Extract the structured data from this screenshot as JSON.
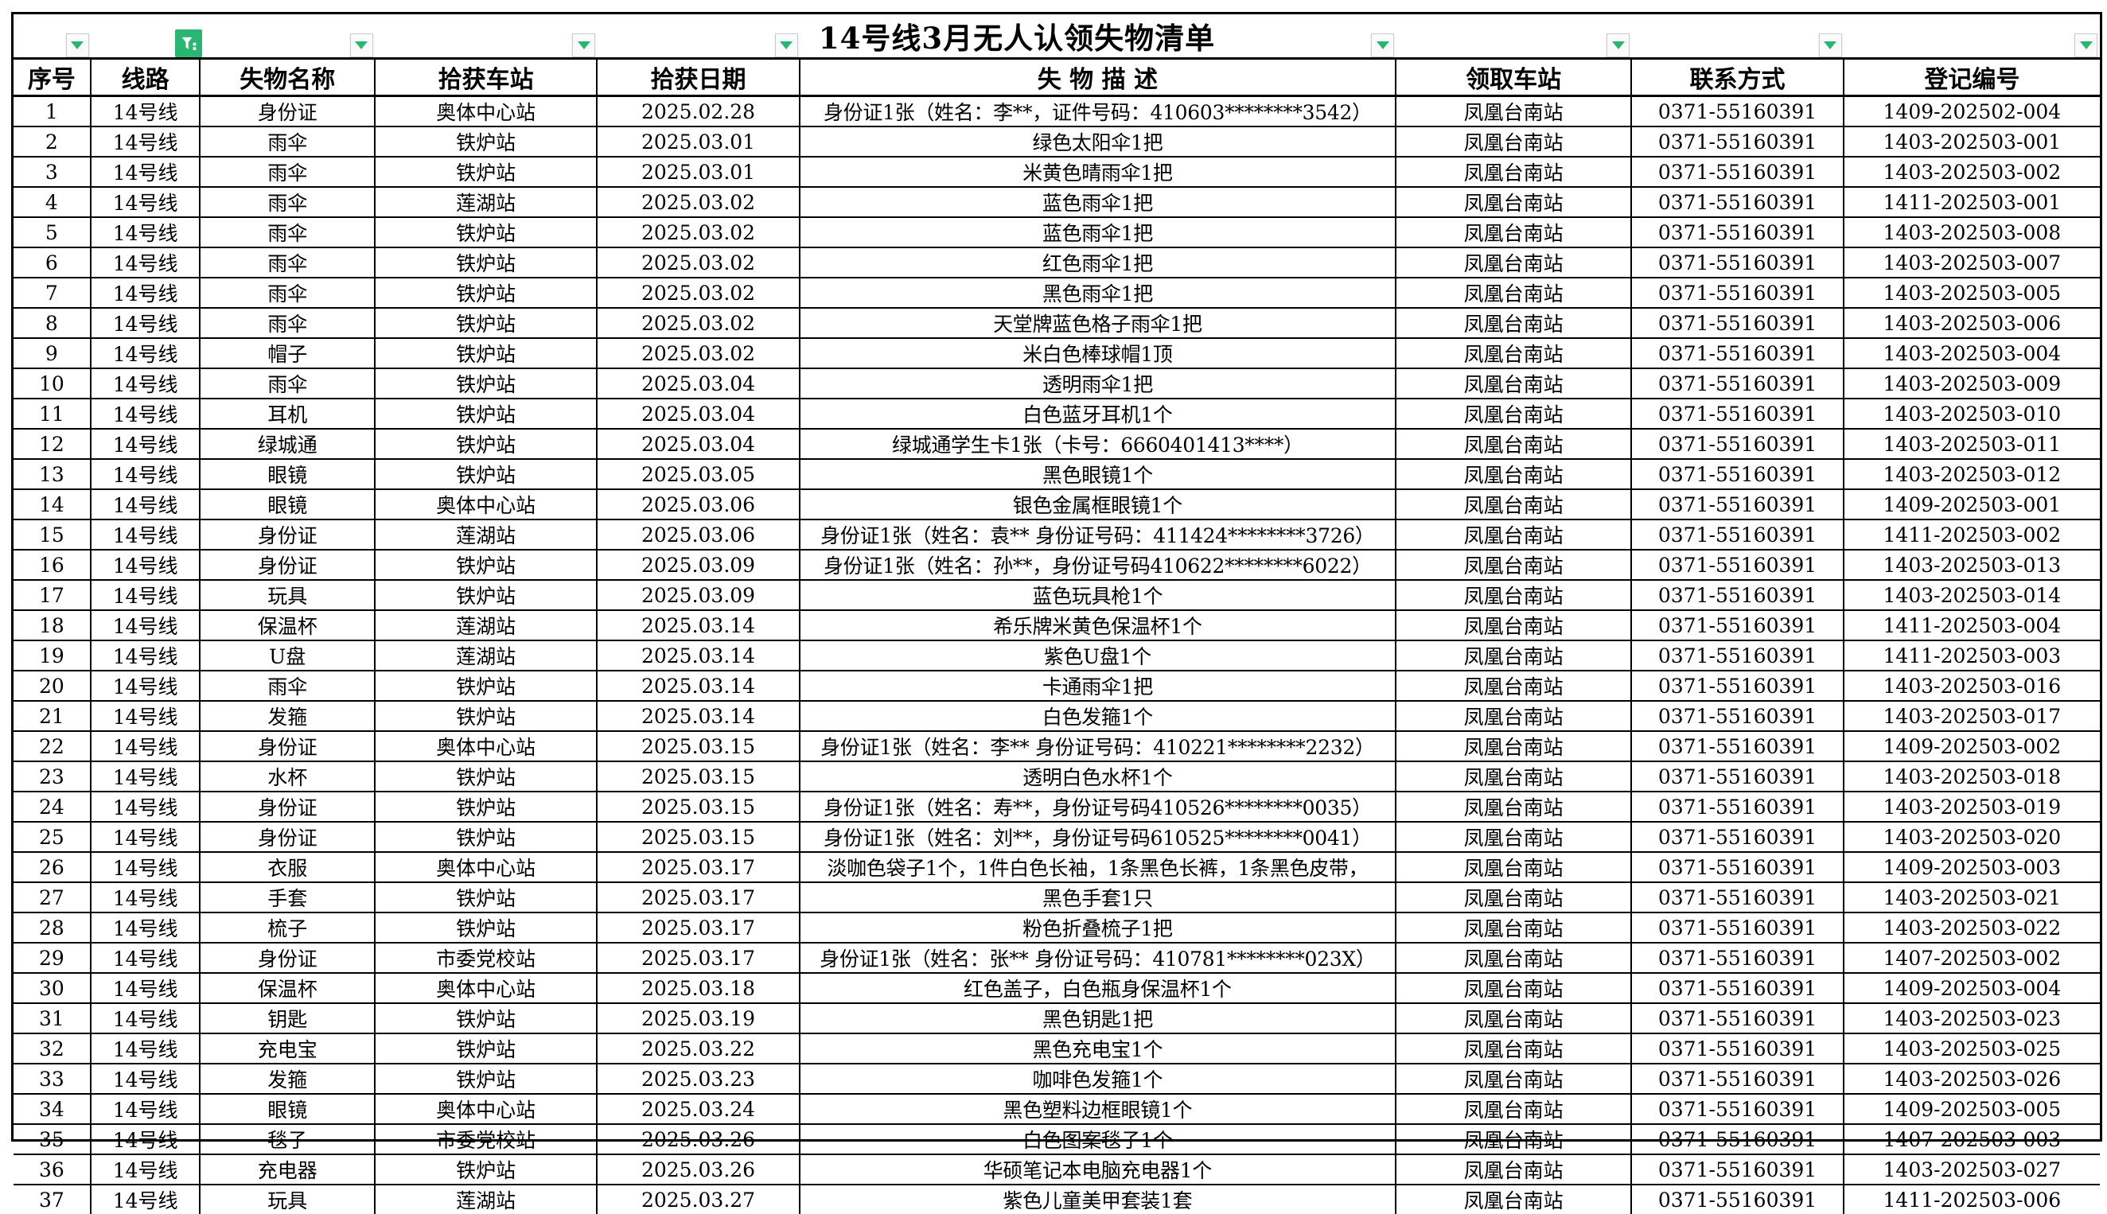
{
  "title": "14号线3月无人认领失物清单",
  "accent_color": "#2bb573",
  "table": {
    "columns": [
      {
        "label": "序号",
        "filter": "arrow"
      },
      {
        "label": "线路",
        "filter": "funnel"
      },
      {
        "label": "失物名称",
        "filter": "arrow"
      },
      {
        "label": "拾获车站",
        "filter": "arrow"
      },
      {
        "label": "拾获日期",
        "filter": "arrow"
      },
      {
        "label": "失 物 描 述",
        "filter": "arrow"
      },
      {
        "label": "领取车站",
        "filter": "arrow"
      },
      {
        "label": "联系方式",
        "filter": "arrow"
      },
      {
        "label": "登记编号",
        "filter": "arrow"
      }
    ],
    "rows": [
      [
        "1",
        "14号线",
        "身份证",
        "奥体中心站",
        "2025.02.28",
        "身份证1张（姓名：李**，证件号码：410603********3542）",
        "凤凰台南站",
        "0371-55160391",
        "1409-202502-004"
      ],
      [
        "2",
        "14号线",
        "雨伞",
        "铁炉站",
        "2025.03.01",
        "绿色太阳伞1把",
        "凤凰台南站",
        "0371-55160391",
        "1403-202503-001"
      ],
      [
        "3",
        "14号线",
        "雨伞",
        "铁炉站",
        "2025.03.01",
        "米黄色晴雨伞1把",
        "凤凰台南站",
        "0371-55160391",
        "1403-202503-002"
      ],
      [
        "4",
        "14号线",
        "雨伞",
        "莲湖站",
        "2025.03.02",
        "蓝色雨伞1把",
        "凤凰台南站",
        "0371-55160391",
        "1411-202503-001"
      ],
      [
        "5",
        "14号线",
        "雨伞",
        "铁炉站",
        "2025.03.02",
        "蓝色雨伞1把",
        "凤凰台南站",
        "0371-55160391",
        "1403-202503-008"
      ],
      [
        "6",
        "14号线",
        "雨伞",
        "铁炉站",
        "2025.03.02",
        "红色雨伞1把",
        "凤凰台南站",
        "0371-55160391",
        "1403-202503-007"
      ],
      [
        "7",
        "14号线",
        "雨伞",
        "铁炉站",
        "2025.03.02",
        "黑色雨伞1把",
        "凤凰台南站",
        "0371-55160391",
        "1403-202503-005"
      ],
      [
        "8",
        "14号线",
        "雨伞",
        "铁炉站",
        "2025.03.02",
        "天堂牌蓝色格子雨伞1把",
        "凤凰台南站",
        "0371-55160391",
        "1403-202503-006"
      ],
      [
        "9",
        "14号线",
        "帽子",
        "铁炉站",
        "2025.03.02",
        "米白色棒球帽1顶",
        "凤凰台南站",
        "0371-55160391",
        "1403-202503-004"
      ],
      [
        "10",
        "14号线",
        "雨伞",
        "铁炉站",
        "2025.03.04",
        "透明雨伞1把",
        "凤凰台南站",
        "0371-55160391",
        "1403-202503-009"
      ],
      [
        "11",
        "14号线",
        "耳机",
        "铁炉站",
        "2025.03.04",
        "白色蓝牙耳机1个",
        "凤凰台南站",
        "0371-55160391",
        "1403-202503-010"
      ],
      [
        "12",
        "14号线",
        "绿城通",
        "铁炉站",
        "2025.03.04",
        "绿城通学生卡1张（卡号：6660401413****）",
        "凤凰台南站",
        "0371-55160391",
        "1403-202503-011"
      ],
      [
        "13",
        "14号线",
        "眼镜",
        "铁炉站",
        "2025.03.05",
        "黑色眼镜1个",
        "凤凰台南站",
        "0371-55160391",
        "1403-202503-012"
      ],
      [
        "14",
        "14号线",
        "眼镜",
        "奥体中心站",
        "2025.03.06",
        "银色金属框眼镜1个",
        "凤凰台南站",
        "0371-55160391",
        "1409-202503-001"
      ],
      [
        "15",
        "14号线",
        "身份证",
        "莲湖站",
        "2025.03.06",
        "身份证1张（姓名：袁** 身份证号码：411424********3726）",
        "凤凰台南站",
        "0371-55160391",
        "1411-202503-002"
      ],
      [
        "16",
        "14号线",
        "身份证",
        "铁炉站",
        "2025.03.09",
        "身份证1张（姓名：孙**，身份证号码410622********6022）",
        "凤凰台南站",
        "0371-55160391",
        "1403-202503-013"
      ],
      [
        "17",
        "14号线",
        "玩具",
        "铁炉站",
        "2025.03.09",
        "蓝色玩具枪1个",
        "凤凰台南站",
        "0371-55160391",
        "1403-202503-014"
      ],
      [
        "18",
        "14号线",
        "保温杯",
        "莲湖站",
        "2025.03.14",
        "希乐牌米黄色保温杯1个",
        "凤凰台南站",
        "0371-55160391",
        "1411-202503-004"
      ],
      [
        "19",
        "14号线",
        "U盘",
        "莲湖站",
        "2025.03.14",
        "紫色U盘1个",
        "凤凰台南站",
        "0371-55160391",
        "1411-202503-003"
      ],
      [
        "20",
        "14号线",
        "雨伞",
        "铁炉站",
        "2025.03.14",
        "卡通雨伞1把",
        "凤凰台南站",
        "0371-55160391",
        "1403-202503-016"
      ],
      [
        "21",
        "14号线",
        "发箍",
        "铁炉站",
        "2025.03.14",
        "白色发箍1个",
        "凤凰台南站",
        "0371-55160391",
        "1403-202503-017"
      ],
      [
        "22",
        "14号线",
        "身份证",
        "奥体中心站",
        "2025.03.15",
        "身份证1张（姓名：李** 身份证号码：410221********2232）",
        "凤凰台南站",
        "0371-55160391",
        "1409-202503-002"
      ],
      [
        "23",
        "14号线",
        "水杯",
        "铁炉站",
        "2025.03.15",
        "透明白色水杯1个",
        "凤凰台南站",
        "0371-55160391",
        "1403-202503-018"
      ],
      [
        "24",
        "14号线",
        "身份证",
        "铁炉站",
        "2025.03.15",
        "身份证1张（姓名：寿**，身份证号码410526********0035）",
        "凤凰台南站",
        "0371-55160391",
        "1403-202503-019"
      ],
      [
        "25",
        "14号线",
        "身份证",
        "铁炉站",
        "2025.03.15",
        "身份证1张（姓名：刘**，身份证号码610525********0041）",
        "凤凰台南站",
        "0371-55160391",
        "1403-202503-020"
      ],
      [
        "26",
        "14号线",
        "衣服",
        "奥体中心站",
        "2025.03.17",
        "淡咖色袋子1个，1件白色长袖，1条黑色长裤，1条黑色皮带，",
        "凤凰台南站",
        "0371-55160391",
        "1409-202503-003"
      ],
      [
        "27",
        "14号线",
        "手套",
        "铁炉站",
        "2025.03.17",
        "黑色手套1只",
        "凤凰台南站",
        "0371-55160391",
        "1403-202503-021"
      ],
      [
        "28",
        "14号线",
        "梳子",
        "铁炉站",
        "2025.03.17",
        "粉色折叠梳子1把",
        "凤凰台南站",
        "0371-55160391",
        "1403-202503-022"
      ],
      [
        "29",
        "14号线",
        "身份证",
        "市委党校站",
        "2025.03.17",
        "身份证1张（姓名：张** 身份证号码：410781********023X）",
        "凤凰台南站",
        "0371-55160391",
        "1407-202503-002"
      ],
      [
        "30",
        "14号线",
        "保温杯",
        "奥体中心站",
        "2025.03.18",
        "红色盖子，白色瓶身保温杯1个",
        "凤凰台南站",
        "0371-55160391",
        "1409-202503-004"
      ],
      [
        "31",
        "14号线",
        "钥匙",
        "铁炉站",
        "2025.03.19",
        "黑色钥匙1把",
        "凤凰台南站",
        "0371-55160391",
        "1403-202503-023"
      ],
      [
        "32",
        "14号线",
        "充电宝",
        "铁炉站",
        "2025.03.22",
        "黑色充电宝1个",
        "凤凰台南站",
        "0371-55160391",
        "1403-202503-025"
      ],
      [
        "33",
        "14号线",
        "发箍",
        "铁炉站",
        "2025.03.23",
        "咖啡色发箍1个",
        "凤凰台南站",
        "0371-55160391",
        "1403-202503-026"
      ],
      [
        "34",
        "14号线",
        "眼镜",
        "奥体中心站",
        "2025.03.24",
        "黑色塑料边框眼镜1个",
        "凤凰台南站",
        "0371-55160391",
        "1409-202503-005"
      ],
      [
        "35",
        "14号线",
        "毯子",
        "市委党校站",
        "2025.03.26",
        "白色图案毯子1个",
        "凤凰台南站",
        "0371-55160391",
        "1407-202503-003"
      ],
      [
        "36",
        "14号线",
        "充电器",
        "铁炉站",
        "2025.03.26",
        "华硕笔记本电脑充电器1个",
        "凤凰台南站",
        "0371-55160391",
        "1403-202503-027"
      ],
      [
        "37",
        "14号线",
        "玩具",
        "莲湖站",
        "2025.03.27",
        "紫色儿童美甲套装1套",
        "凤凰台南站",
        "0371-55160391",
        "1411-202503-006"
      ]
    ]
  }
}
